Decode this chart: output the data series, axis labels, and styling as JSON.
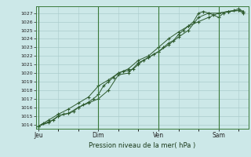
{
  "xlabel": "Pression niveau de la mer( hPa )",
  "bg_color": "#cce8e8",
  "grid_color": "#aacccc",
  "line_color": "#2d5a2d",
  "ylim": [
    1013.5,
    1027.8
  ],
  "yticks": [
    1014,
    1015,
    1016,
    1017,
    1018,
    1019,
    1020,
    1021,
    1022,
    1023,
    1024,
    1025,
    1026,
    1027
  ],
  "day_labels": [
    "Jeu",
    "Dim",
    "Ven",
    "Sam"
  ],
  "day_positions": [
    0.0,
    3.0,
    6.0,
    9.0
  ],
  "xlim": [
    -0.1,
    10.5
  ],
  "line1_x": [
    0.0,
    0.25,
    0.5,
    0.75,
    1.0,
    1.25,
    1.5,
    1.75,
    2.0,
    2.25,
    2.5,
    2.75,
    3.0,
    3.25,
    3.5,
    3.75,
    4.0,
    4.25,
    4.5,
    4.75,
    5.0,
    5.25,
    5.5,
    5.75,
    6.0,
    6.25,
    6.5,
    6.75,
    7.0,
    7.25,
    7.5,
    7.75,
    8.0,
    8.25,
    8.5,
    8.75,
    9.0,
    9.25,
    9.5,
    9.75,
    10.0,
    10.25
  ],
  "line1_y": [
    1013.8,
    1014.1,
    1014.3,
    1014.5,
    1015.0,
    1015.2,
    1015.3,
    1015.5,
    1016.0,
    1016.3,
    1016.6,
    1017.0,
    1017.5,
    1018.5,
    1019.0,
    1019.5,
    1020.0,
    1020.2,
    1020.3,
    1020.5,
    1021.0,
    1021.5,
    1021.8,
    1022.2,
    1022.5,
    1023.0,
    1023.5,
    1023.8,
    1024.5,
    1025.0,
    1025.5,
    1026.0,
    1027.0,
    1027.2,
    1027.0,
    1026.8,
    1026.5,
    1027.0,
    1027.2,
    1027.3,
    1027.5,
    1027.2
  ],
  "line2_x": [
    0.0,
    0.5,
    1.0,
    1.5,
    2.0,
    2.5,
    3.0,
    3.5,
    4.0,
    4.5,
    5.0,
    5.5,
    6.0,
    6.5,
    7.0,
    7.5,
    8.0,
    8.5,
    9.0,
    9.5,
    10.0,
    10.25
  ],
  "line2_y": [
    1013.8,
    1014.2,
    1015.0,
    1015.3,
    1016.0,
    1016.5,
    1017.0,
    1018.0,
    1019.8,
    1020.0,
    1021.2,
    1021.8,
    1022.5,
    1023.3,
    1024.2,
    1025.0,
    1026.5,
    1027.0,
    1027.0,
    1027.2,
    1027.3,
    1027.0
  ],
  "line3_x": [
    0.0,
    0.5,
    1.0,
    1.5,
    2.0,
    2.5,
    3.0,
    3.5,
    4.0,
    4.5,
    5.0,
    5.5,
    6.0,
    6.5,
    7.0,
    7.5,
    8.0,
    8.5,
    9.0,
    9.5,
    10.0,
    10.25
  ],
  "line3_y": [
    1013.8,
    1014.5,
    1015.2,
    1015.8,
    1016.5,
    1017.2,
    1018.5,
    1019.2,
    1020.0,
    1020.5,
    1021.5,
    1022.0,
    1023.0,
    1024.0,
    1024.8,
    1025.5,
    1026.0,
    1026.5,
    1027.0,
    1027.2,
    1027.3,
    1027.2
  ]
}
